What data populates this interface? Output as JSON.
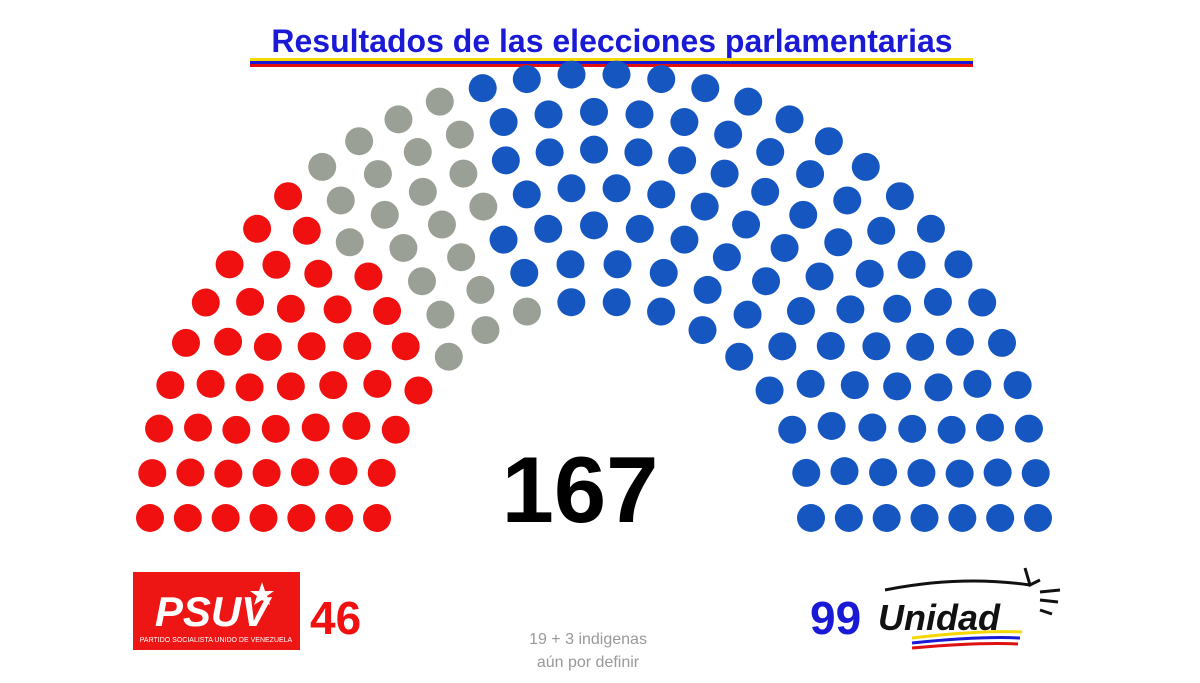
{
  "chart_data": {
    "type": "parliament",
    "title": "Resultados de las elecciones parlamentarias",
    "total": 167,
    "parties": [
      {
        "name": "PSUV",
        "subtitle": "PARTIDO SOCIALISTA UNIDO DE VENEZUELA",
        "color": "#f01010",
        "value": 46
      },
      {
        "note": [
          "19 + 3 indigenas",
          "aún por definir"
        ],
        "color": "#9aa096",
        "value": 22
      },
      {
        "name": "Unidad",
        "color": "#1556c0",
        "value": 99
      }
    ]
  }
}
